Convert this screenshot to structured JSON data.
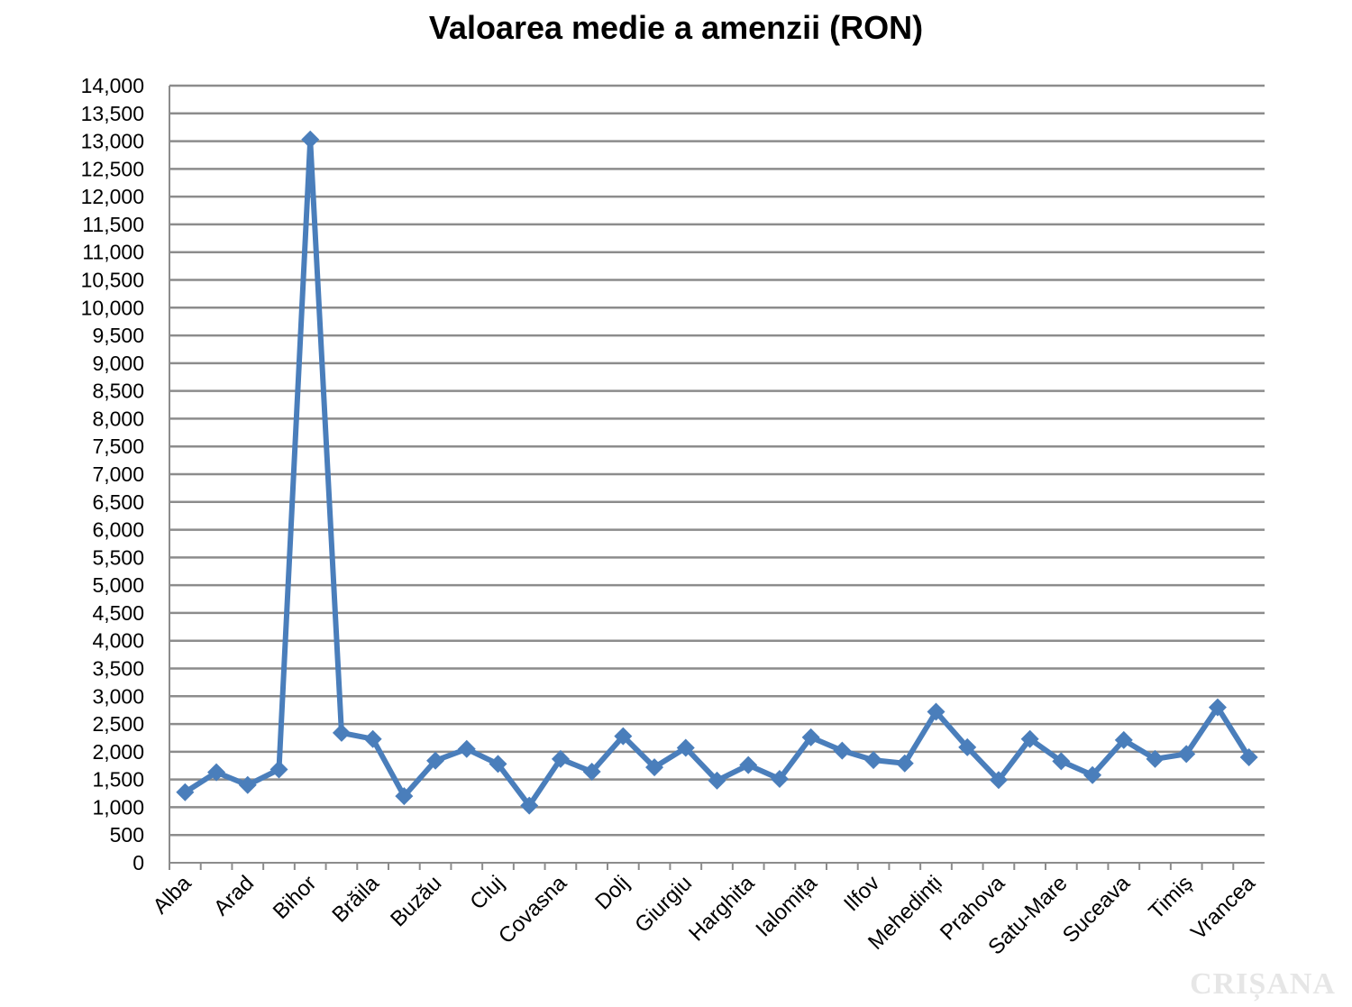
{
  "chart_data": {
    "type": "line",
    "title": "Valoarea medie a amenzii (RON)",
    "xlabel": "",
    "ylabel": "",
    "ylim": [
      0,
      14000
    ],
    "y_ticks": [
      "0",
      "500",
      "1,000",
      "1,500",
      "2,000",
      "2,500",
      "3,000",
      "3,500",
      "4,000",
      "4,500",
      "5,000",
      "5,500",
      "6,000",
      "6,500",
      "7,000",
      "7,500",
      "8,000",
      "8,500",
      "9,000",
      "9,500",
      "10,000",
      "10,500",
      "11,000",
      "11,500",
      "12,000",
      "12,500",
      "13,000",
      "13,500",
      "14,000"
    ],
    "y_tick_values": [
      0,
      500,
      1000,
      1500,
      2000,
      2500,
      3000,
      3500,
      4000,
      4500,
      5000,
      5500,
      6000,
      6500,
      7000,
      7500,
      8000,
      8500,
      9000,
      9500,
      10000,
      10500,
      11000,
      11500,
      12000,
      12500,
      13000,
      13500,
      14000
    ],
    "categories": [
      "Alba",
      "",
      "Arad",
      "",
      "Bihor",
      "",
      "Brăila",
      "",
      "Buzău",
      "",
      "Cluj",
      "",
      "Covasna",
      "",
      "Dolj",
      "",
      "Giurgiu",
      "",
      "Harghita",
      "",
      "Ialomița",
      "",
      "Ilfov",
      "",
      "Mehedinți",
      "",
      "Prahova",
      "",
      "Satu-Mare",
      "",
      "Suceava",
      "",
      "Timiș",
      "",
      "Vrancea"
    ],
    "grid": true,
    "legend": "none",
    "color": "#4a7ebb",
    "values": [
      1270,
      1630,
      1400,
      1680,
      13030,
      2340,
      2230,
      1200,
      1840,
      2050,
      1780,
      1030,
      1870,
      1640,
      2280,
      1720,
      2070,
      1480,
      1760,
      1510,
      2260,
      2020,
      1850,
      1790,
      2720,
      2080,
      1490,
      2230,
      1830,
      1580,
      2210,
      1870,
      1960,
      2800,
      1900
    ]
  },
  "watermark": "CRIȘANA"
}
